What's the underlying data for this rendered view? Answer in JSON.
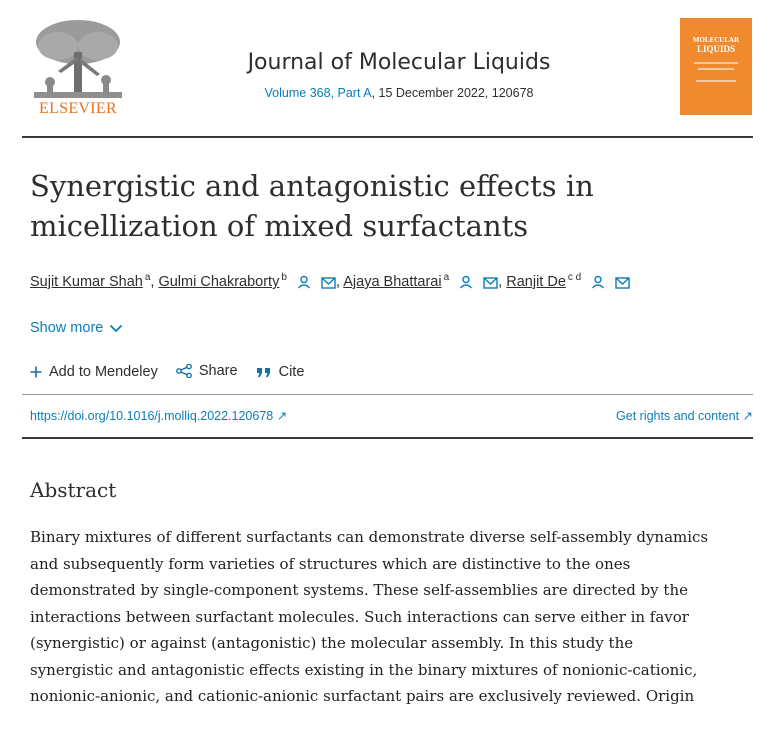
{
  "header": {
    "publisher": "ELSEVIER",
    "journal_title": "Journal of Molecular Liquids",
    "volume_link": "Volume 368, Part A",
    "volume_rest": ", 15 December 2022, 120678",
    "cover": {
      "line1": "MOLECULAR",
      "line2": "LIQUIDS"
    }
  },
  "article": {
    "title": "Synergistic and antagonistic effects in micellization of mixed surfactants"
  },
  "authors": [
    {
      "name": "Sujit Kumar Shah",
      "sup": "a"
    },
    {
      "name": "Gulmi Chakraborty",
      "sup": "b"
    },
    {
      "name": "Ajaya Bhattarai",
      "sup": "a"
    },
    {
      "name": "Ranjit De",
      "sup": "c d"
    }
  ],
  "show_more": "Show more",
  "actions": {
    "mendeley": "Add to Mendeley",
    "share": "Share",
    "cite": "Cite"
  },
  "links": {
    "doi": "https://doi.org/10.1016/j.molliq.2022.120678 ↗",
    "rights": "Get rights and content ↗"
  },
  "abstract": {
    "heading": "Abstract",
    "lines": [
      "Binary mixtures of different surfactants can demonstrate diverse self-assembly dynamics",
      "and subsequently form varieties of structures which are distinctive to the ones",
      "demonstrated by single-component systems. These self-assemblies are directed by the",
      "interactions between surfactant molecules. Such interactions can serve either in favor",
      "(synergistic) or against (antagonistic) the molecular assembly. In this study the",
      "synergistic and antagonistic effects existing in the binary mixtures of nonionic-cationic,",
      "nonionic-anionic, and cationic-anionic surfactant pairs are exclusively reviewed. Origin"
    ]
  },
  "colors": {
    "link": "#0c7dbb",
    "elsevier_orange": "#e9711c",
    "cover_orange": "#f08a2e"
  }
}
